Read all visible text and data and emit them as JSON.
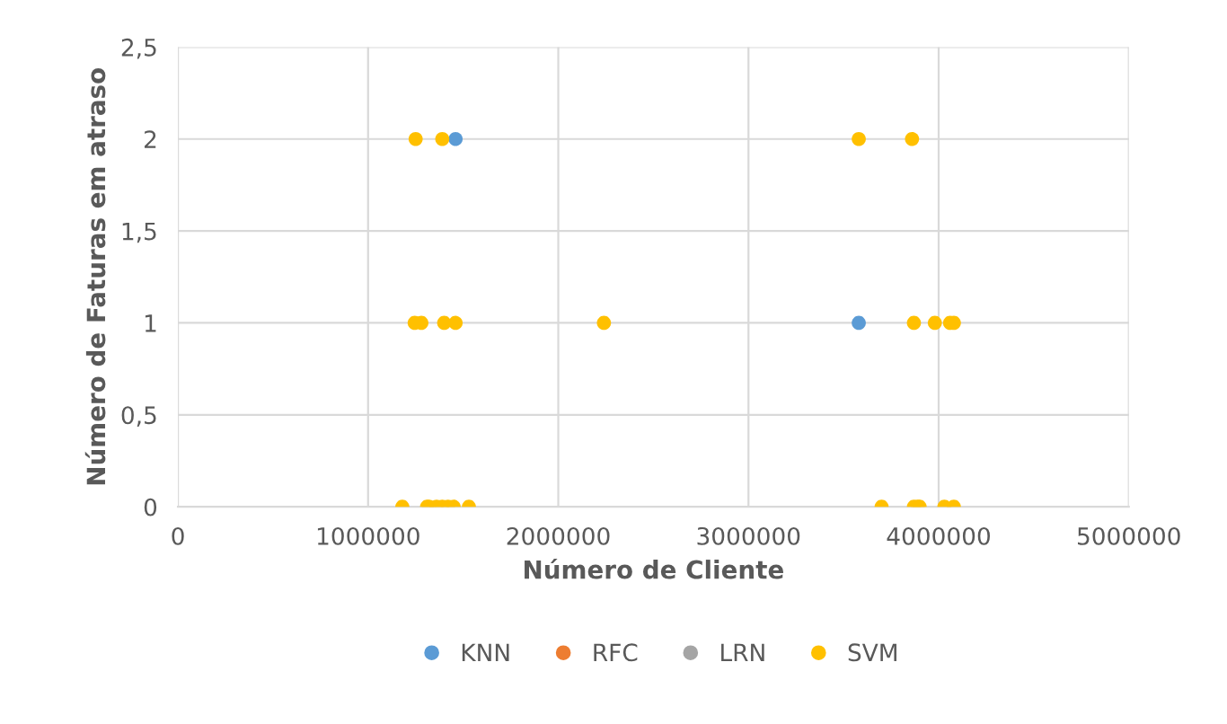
{
  "chart_data": {
    "type": "scatter",
    "xlabel": "Número de Cliente",
    "ylabel": "Número de Faturas em atraso",
    "xlim": [
      0,
      5000000
    ],
    "xticks": [
      0,
      1000000,
      2000000,
      3000000,
      4000000,
      5000000
    ],
    "ylim": [
      0,
      2.5
    ],
    "yticks": [
      {
        "value": 0,
        "label": "0"
      },
      {
        "value": 0.5,
        "label": "0,5"
      },
      {
        "value": 1,
        "label": "1"
      },
      {
        "value": 1.5,
        "label": "1,5"
      },
      {
        "value": 2,
        "label": "2"
      },
      {
        "value": 2.5,
        "label": "2,5"
      }
    ],
    "grid": true,
    "legend": "bottom",
    "marker": "circle",
    "series": [
      {
        "name": "KNN",
        "color": "#5b9bd5",
        "x": [
          1460000,
          3580000
        ],
        "values": [
          2,
          1
        ]
      },
      {
        "name": "RFC",
        "color": "#ed7d31"
      },
      {
        "name": "LRN",
        "color": "#a5a5a5"
      },
      {
        "name": "SVM",
        "color": "#ffc000",
        "x": [
          1250000,
          1390000,
          3580000,
          3860000,
          1245000,
          1280000,
          1400000,
          1460000,
          2240000,
          3870000,
          3980000,
          4060000,
          4080000,
          1180000,
          1310000,
          1320000,
          1360000,
          1390000,
          1420000,
          1450000,
          1530000,
          3700000,
          3870000,
          3890000,
          3900000,
          4030000,
          4080000
        ],
        "values": [
          2,
          2,
          2,
          2,
          1,
          1,
          1,
          1,
          1,
          1,
          1,
          1,
          1,
          0,
          0,
          0,
          0,
          0,
          0,
          0,
          0,
          0,
          0,
          0,
          0,
          0,
          0
        ]
      }
    ]
  }
}
